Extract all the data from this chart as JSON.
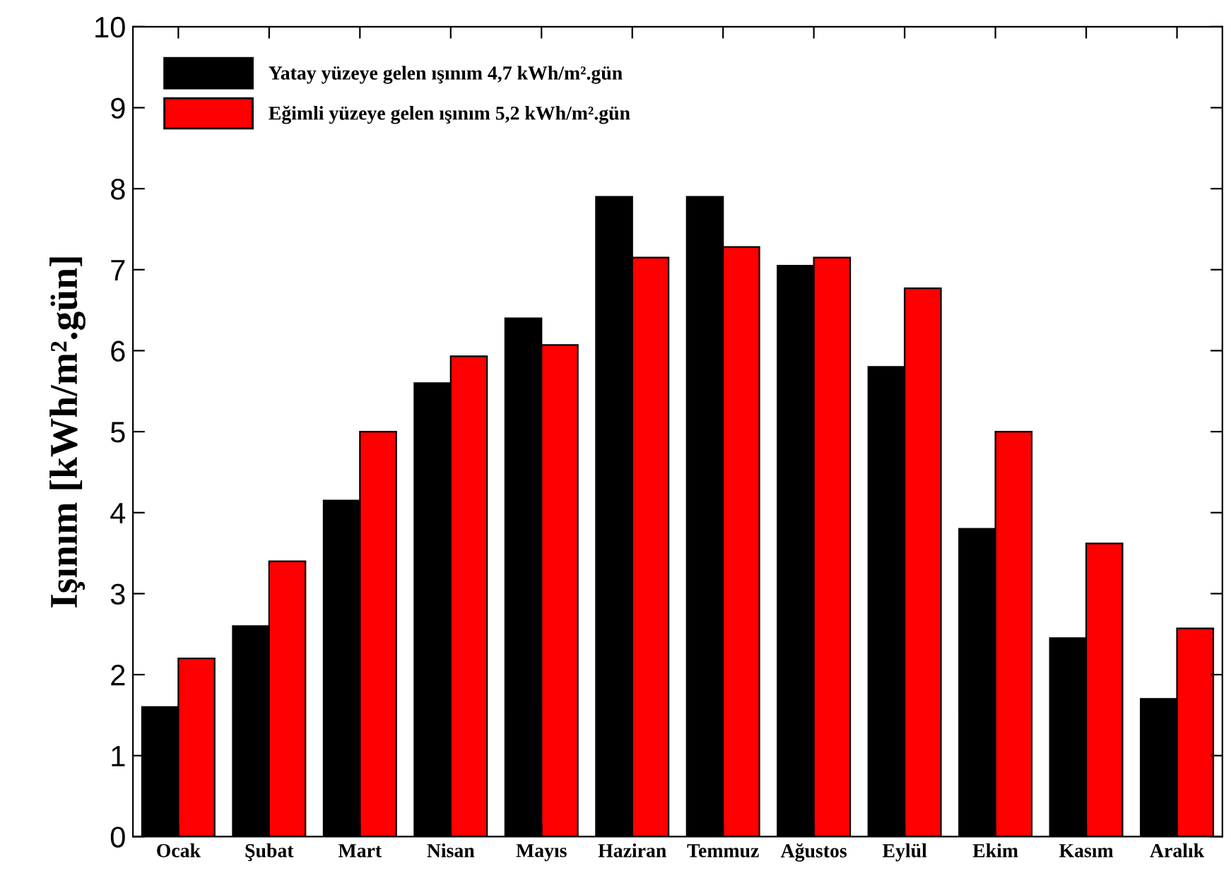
{
  "chart_data": {
    "type": "bar",
    "ylabel": "Işınım [kWh/m².gün]",
    "categories": [
      "Ocak",
      "Şubat",
      "Mart",
      "Nisan",
      "Mayıs",
      "Haziran",
      "Temmuz",
      "Ağustos",
      "Eylül",
      "Ekim",
      "Kasım",
      "Aralık"
    ],
    "series": [
      {
        "name": "Yatay yüzeye gelen ışınım 4,7 kWh/m².gün",
        "color": "#000000",
        "values": [
          1.6,
          2.6,
          4.15,
          5.6,
          6.4,
          7.9,
          7.9,
          7.05,
          5.8,
          3.8,
          2.45,
          1.7
        ]
      },
      {
        "name": "Eğimli yüzeye gelen ışınım 5,2 kWh/m².gün",
        "color": "#ff0000",
        "values": [
          2.2,
          3.4,
          5.0,
          5.93,
          6.07,
          7.15,
          7.28,
          7.15,
          6.77,
          5.0,
          3.62,
          2.57
        ]
      }
    ],
    "ylim": [
      0,
      10
    ],
    "yticks": [
      0,
      1,
      2,
      3,
      4,
      5,
      6,
      7,
      8,
      9,
      10
    ],
    "grid": false,
    "legend": "top left"
  }
}
